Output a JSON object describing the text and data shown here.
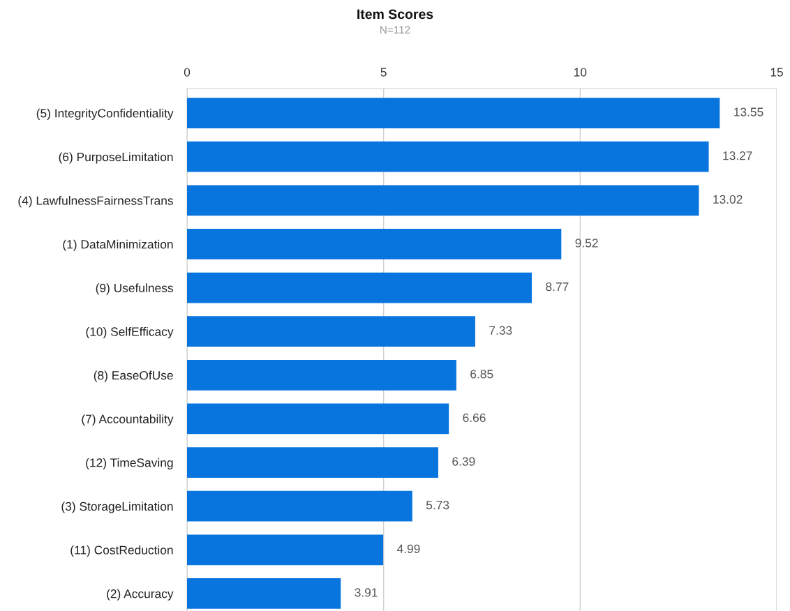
{
  "chart_data": {
    "type": "bar",
    "orientation": "horizontal",
    "title": "Item Scores",
    "subtitle": "N=112",
    "categories": [
      "(5) IntegrityConfidentiality",
      "(6) PurposeLimitation",
      "(4) LawfulnessFairnessTrans",
      "(1) DataMinimization",
      "(9) Usefulness",
      "(10) SelfEfficacy",
      "(8) EaseOfUse",
      "(7) Accountability",
      "(12) TimeSaving",
      "(3) StorageLimitation",
      "(11) CostReduction",
      "(2) Accuracy"
    ],
    "values": [
      13.55,
      13.27,
      13.02,
      9.52,
      8.77,
      7.33,
      6.85,
      6.66,
      6.39,
      5.73,
      4.99,
      3.91
    ],
    "color": "#0874de",
    "xlim": [
      0,
      15
    ],
    "xticks": [
      0,
      5,
      10,
      15
    ],
    "grid": "x",
    "data_labels": true
  }
}
